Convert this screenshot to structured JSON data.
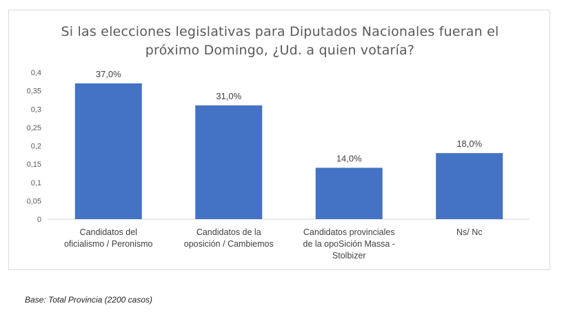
{
  "chart_data": {
    "type": "bar",
    "title_lines": [
      "Si las elecciones legislativas para Diputados Nacionales fueran el",
      "próximo Domingo, ¿Ud. a quien votaría?"
    ],
    "categories": [
      [
        "Candidatos del",
        "oficialismo / Peronismo"
      ],
      [
        "Candidatos de la",
        "oposición / Cambiemos"
      ],
      [
        "Candidatos provinciales",
        "de la opoSición Massa -",
        "Stolbizer"
      ],
      [
        "Ns/ Nc"
      ]
    ],
    "values": [
      0.37,
      0.31,
      0.14,
      0.18
    ],
    "data_labels": [
      "37,0%",
      "31,0%",
      "14,0%",
      "18,0%"
    ],
    "ylim": [
      0,
      0.4
    ],
    "yticks": [
      "0",
      "0,05",
      "0,1",
      "0,15",
      "0,2",
      "0,25",
      "0,3",
      "0,35",
      "0,4"
    ],
    "grid": false,
    "bar_color": "#4472C4"
  },
  "footer": {
    "note": "Base: Total Provincia (2200 casos)"
  }
}
